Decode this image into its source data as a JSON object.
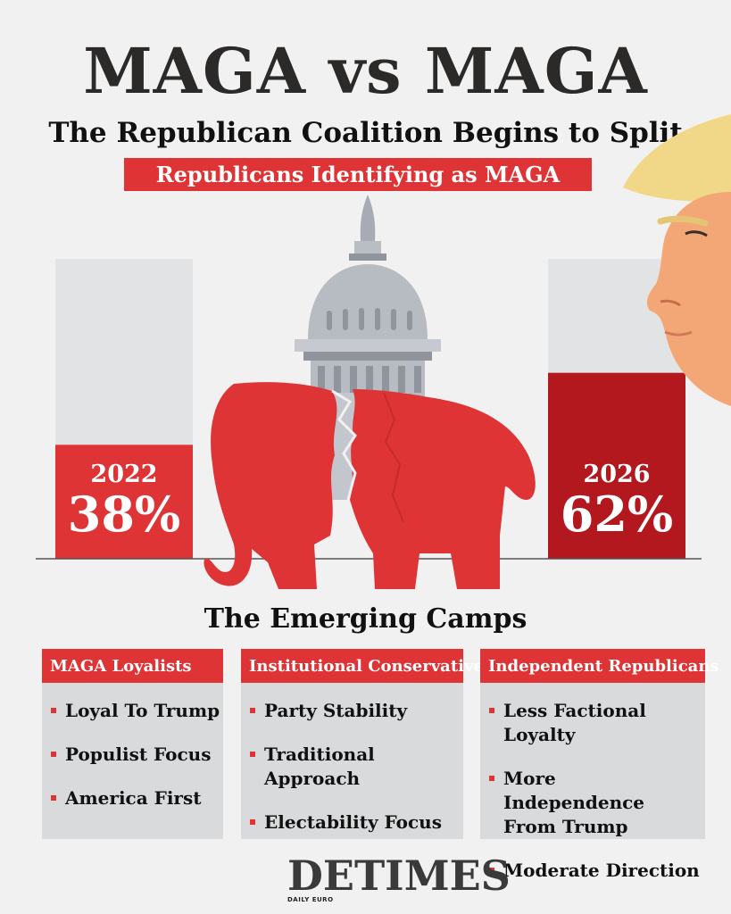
{
  "header": {
    "title": "MAGA vs MAGA",
    "subtitle": "The Republican Coalition Begins to Split",
    "banner": "Republicans Identifying as MAGA"
  },
  "chart_data": {
    "type": "bar",
    "title": "Republicans Identifying as MAGA",
    "categories": [
      "2022",
      "2026"
    ],
    "values": [
      38,
      62
    ],
    "value_labels": [
      "38%",
      "62%"
    ],
    "ylim": [
      0,
      100
    ],
    "colors": [
      "#df3436",
      "#b3181f"
    ],
    "track_color": "#e2e3e4"
  },
  "camps": {
    "title": "The Emerging Camps",
    "groups": [
      {
        "name": "MAGA Loyalists",
        "items": [
          "Loyal To Trump",
          "Populist Focus",
          "America First"
        ]
      },
      {
        "name": "Institutional Conservatives",
        "items": [
          "Party Stability",
          "Traditional Approach",
          "Electability Focus"
        ]
      },
      {
        "name": "Independent Republicans",
        "items": [
          "Less Factional Loyalty",
          "More Independence From Trump",
          "Moderate Direction"
        ]
      }
    ]
  },
  "logo": {
    "name": "DETIMES",
    "tagline": "DAILY EURO"
  },
  "colors": {
    "accent": "#df3436",
    "dark_red": "#b3181f",
    "background": "#f2f1f1",
    "panel": "#d9dadb"
  },
  "icons": [
    "capitol-icon",
    "elephant-icon",
    "figure-illustration"
  ]
}
